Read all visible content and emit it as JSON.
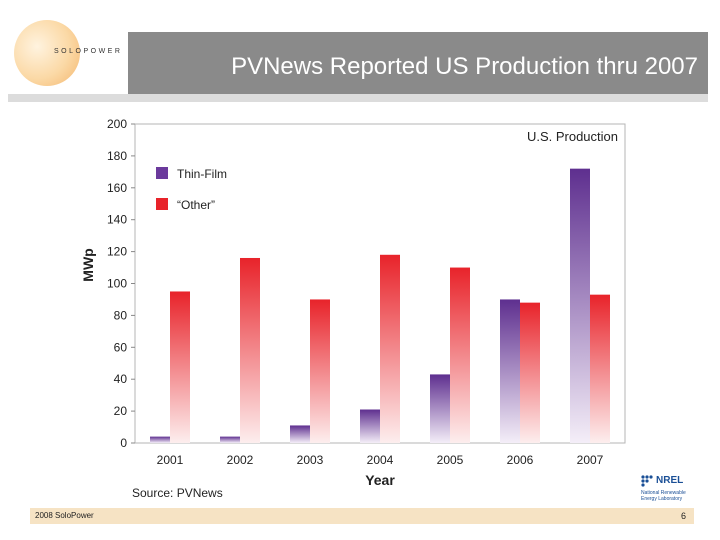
{
  "header": {
    "logo_text": "SOLOPOWER",
    "title": "PVNews Reported US Production thru 2007"
  },
  "footer": {
    "source": "Source: PVNews",
    "copyright": "2008 SoloPower",
    "page_number": "6",
    "nrel_name": "NREL",
    "nrel_subtitle": "National Renewable Energy Laboratory"
  },
  "colors": {
    "thin_film": "#6b3a9c",
    "other": "#e8232a",
    "title_bar": "#8a8a8a"
  },
  "chart_data": {
    "type": "bar",
    "title": "U.S. Production",
    "xlabel": "Year",
    "ylabel": "MWp",
    "categories": [
      "2001",
      "2002",
      "2003",
      "2004",
      "2005",
      "2006",
      "2007"
    ],
    "series": [
      {
        "name": "Thin-Film",
        "values": [
          4,
          4,
          11,
          21,
          43,
          90,
          172
        ]
      },
      {
        "name": "“Other”",
        "values": [
          95,
          116,
          90,
          118,
          110,
          88,
          93
        ]
      }
    ],
    "ylim": [
      0,
      200
    ],
    "yticks": [
      0,
      20,
      40,
      60,
      80,
      100,
      120,
      140,
      160,
      180,
      200
    ],
    "legend_position": "top-left",
    "grid": false
  }
}
